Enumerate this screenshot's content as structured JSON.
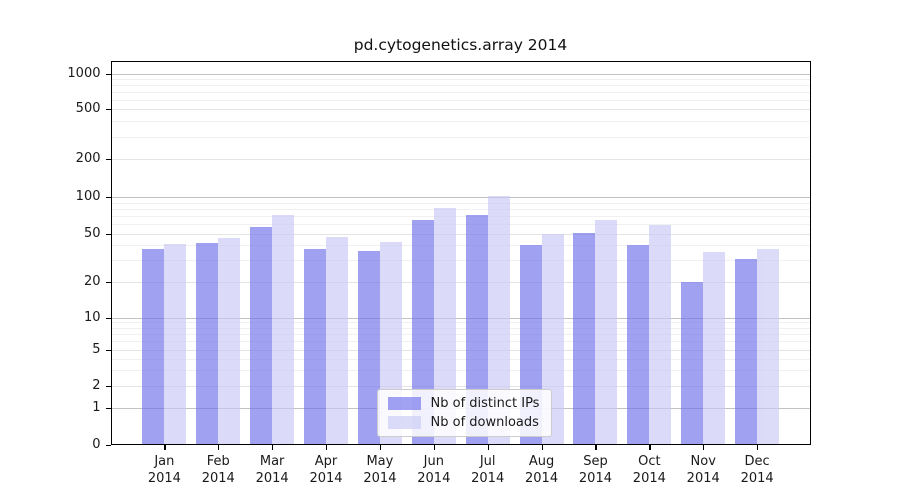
{
  "chart_data": {
    "type": "bar",
    "title": "pd.cytogenetics.array 2014",
    "categories": [
      "Jan",
      "Feb",
      "Mar",
      "Apr",
      "May",
      "Jun",
      "Jul",
      "Aug",
      "Sep",
      "Oct",
      "Nov",
      "Dec"
    ],
    "year_label": "2014",
    "series": [
      {
        "name": "Nb of distinct IPs",
        "color": "#7070ec",
        "values": [
          37,
          42,
          57,
          37,
          36,
          65,
          72,
          40,
          51,
          40,
          20,
          31
        ]
      },
      {
        "name": "Nb of downloads",
        "color": "#c9c9f6",
        "values": [
          41,
          46,
          72,
          47,
          43,
          82,
          103,
          50,
          65,
          59,
          35,
          37
        ]
      }
    ],
    "bar_alpha": 0.65,
    "y_ticks": [
      0,
      1,
      2,
      5,
      10,
      20,
      50,
      100,
      200,
      500,
      1000
    ],
    "ylim": [
      0,
      1259
    ],
    "scale": "log-like with linear segment below 1",
    "grid": true,
    "legend_position": "lower center",
    "xlabel": "",
    "ylabel": ""
  }
}
